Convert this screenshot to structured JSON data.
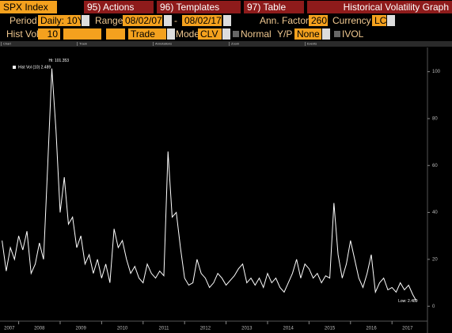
{
  "toolbar": {
    "row1": [
      "SPX Index",
      "95) Actions",
      "96) Templates",
      "97) Table",
      "Historical Volatility Graph"
    ],
    "row2": {
      "period_label": "Period",
      "period": "Daily: 10Y",
      "range_label": "Range",
      "start": "08/02/07",
      "dash": "-",
      "end": "08/02/17",
      "ann_label": "Ann. Factor",
      "ann": "260",
      "currency_label": "Currency",
      "currency": "LCL"
    },
    "row3": {
      "histvol_label": "Hist Vol",
      "histvol": "10",
      "trade": "Trade",
      "model_label": "Model",
      "model": "CLV",
      "normal": "Normal",
      "yp_label": "Y/P",
      "yp": "None",
      "ivol": "IVOL"
    },
    "chart_tabs": [
      "Chart",
      "Track",
      "Annotations",
      "Zoom",
      "Events"
    ]
  },
  "chart_data": {
    "type": "line",
    "x": [
      2007.6,
      2007.7,
      2007.8,
      2007.9,
      2008.0,
      2008.1,
      2008.2,
      2008.3,
      2008.4,
      2008.5,
      2008.6,
      2008.7,
      2008.8,
      2008.9,
      2009.0,
      2009.1,
      2009.2,
      2009.3,
      2009.4,
      2009.5,
      2009.6,
      2009.7,
      2009.8,
      2009.9,
      2010.0,
      2010.1,
      2010.2,
      2010.3,
      2010.4,
      2010.5,
      2010.6,
      2010.7,
      2010.8,
      2010.9,
      2011.0,
      2011.1,
      2011.2,
      2011.3,
      2011.4,
      2011.5,
      2011.6,
      2011.7,
      2011.8,
      2011.9,
      2012.0,
      2012.1,
      2012.2,
      2012.3,
      2012.4,
      2012.5,
      2012.6,
      2012.7,
      2012.8,
      2012.9,
      2013.0,
      2013.1,
      2013.2,
      2013.3,
      2013.4,
      2013.5,
      2013.6,
      2013.7,
      2013.8,
      2013.9,
      2014.0,
      2014.1,
      2014.2,
      2014.3,
      2014.4,
      2014.5,
      2014.6,
      2014.7,
      2014.8,
      2014.9,
      2015.0,
      2015.1,
      2015.2,
      2015.3,
      2015.4,
      2015.5,
      2015.6,
      2015.7,
      2015.8,
      2015.9,
      2016.0,
      2016.1,
      2016.2,
      2016.3,
      2016.4,
      2016.5,
      2016.6,
      2016.7,
      2016.8,
      2016.9,
      2017.0,
      2017.1,
      2017.2,
      2017.3,
      2017.4,
      2017.5,
      2017.58
    ],
    "series": [
      {
        "name": "Hist Vol (10)",
        "color": "#ffffff",
        "values": [
          28,
          15,
          25,
          20,
          30,
          24,
          32,
          14,
          18,
          27,
          20,
          60,
          101.353,
          75,
          40,
          55,
          35,
          38,
          25,
          30,
          18,
          22,
          14,
          20,
          12,
          18,
          10,
          33,
          25,
          28,
          20,
          14,
          17,
          12,
          10,
          18,
          14,
          12,
          15,
          13,
          66,
          38,
          40,
          25,
          12,
          9,
          10,
          20,
          14,
          12,
          8,
          10,
          14,
          12,
          9,
          11,
          13,
          16,
          18,
          10,
          12,
          9,
          12,
          8,
          14,
          10,
          12,
          8,
          6,
          10,
          14,
          20,
          12,
          18,
          16,
          12,
          14,
          10,
          13,
          12,
          44,
          22,
          12,
          18,
          28,
          20,
          12,
          8,
          14,
          22,
          6,
          10,
          12,
          7,
          8,
          6,
          10,
          7,
          9,
          5,
          2.489
        ]
      }
    ],
    "annotations": [
      "Hi: 101.353",
      "Low: 2.489"
    ],
    "xlim": [
      2007.55,
      2017.75
    ],
    "xticks": [
      2007,
      2008,
      2009,
      2010,
      2011,
      2012,
      2013,
      2014,
      2015,
      2016,
      2017
    ],
    "ylim": [
      -5,
      110
    ],
    "yticks": [
      0,
      20,
      40,
      60,
      80,
      100
    ],
    "grid": false
  }
}
